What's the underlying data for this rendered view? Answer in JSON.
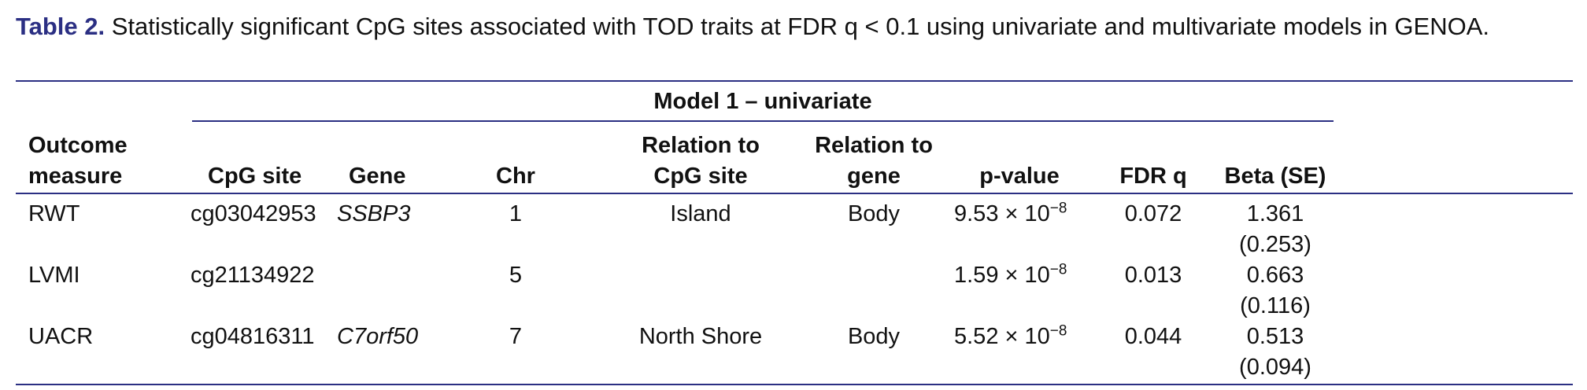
{
  "caption": {
    "label": "Table 2.",
    "text": "Statistically significant CpG sites associated with TOD traits at FDR q < 0.1 using univariate and multivariate models in GENOA."
  },
  "table": {
    "group_header": "Model 1 – univariate",
    "columns": {
      "outcome_line1": "Outcome",
      "outcome_line2": "measure",
      "cpg_site": "CpG site",
      "gene": "Gene",
      "chr": "Chr",
      "relation_cpg_line1": "Relation to",
      "relation_cpg_line2": "CpG site",
      "relation_gene_line1": "Relation to",
      "relation_gene_line2": "gene",
      "pvalue": "p-value",
      "fdr": "FDR q",
      "beta": "Beta (SE)"
    },
    "rows": [
      {
        "outcome": "RWT",
        "cpg": "cg03042953",
        "gene": "SSBP3",
        "chr": "1",
        "relation_cpg": "Island",
        "relation_gene": "Body",
        "p_mantissa": "9.53 × 10",
        "p_exponent": "−8",
        "fdr": "0.072",
        "beta": "1.361",
        "se": "(0.253)"
      },
      {
        "outcome": "LVMI",
        "cpg": "cg21134922",
        "gene": "",
        "chr": "5",
        "relation_cpg": "",
        "relation_gene": "",
        "p_mantissa": "1.59 × 10",
        "p_exponent": "−8",
        "fdr": "0.013",
        "beta": "0.663",
        "se": "(0.116)"
      },
      {
        "outcome": "UACR",
        "cpg": "cg04816311",
        "gene": "C7orf50",
        "chr": "7",
        "relation_cpg": "North Shore",
        "relation_gene": "Body",
        "p_mantissa": "5.52 × 10",
        "p_exponent": "−8",
        "fdr": "0.044",
        "beta": "0.513",
        "se": "(0.094)"
      }
    ]
  },
  "colors": {
    "accent": "#2b2f83",
    "text": "#111111"
  }
}
